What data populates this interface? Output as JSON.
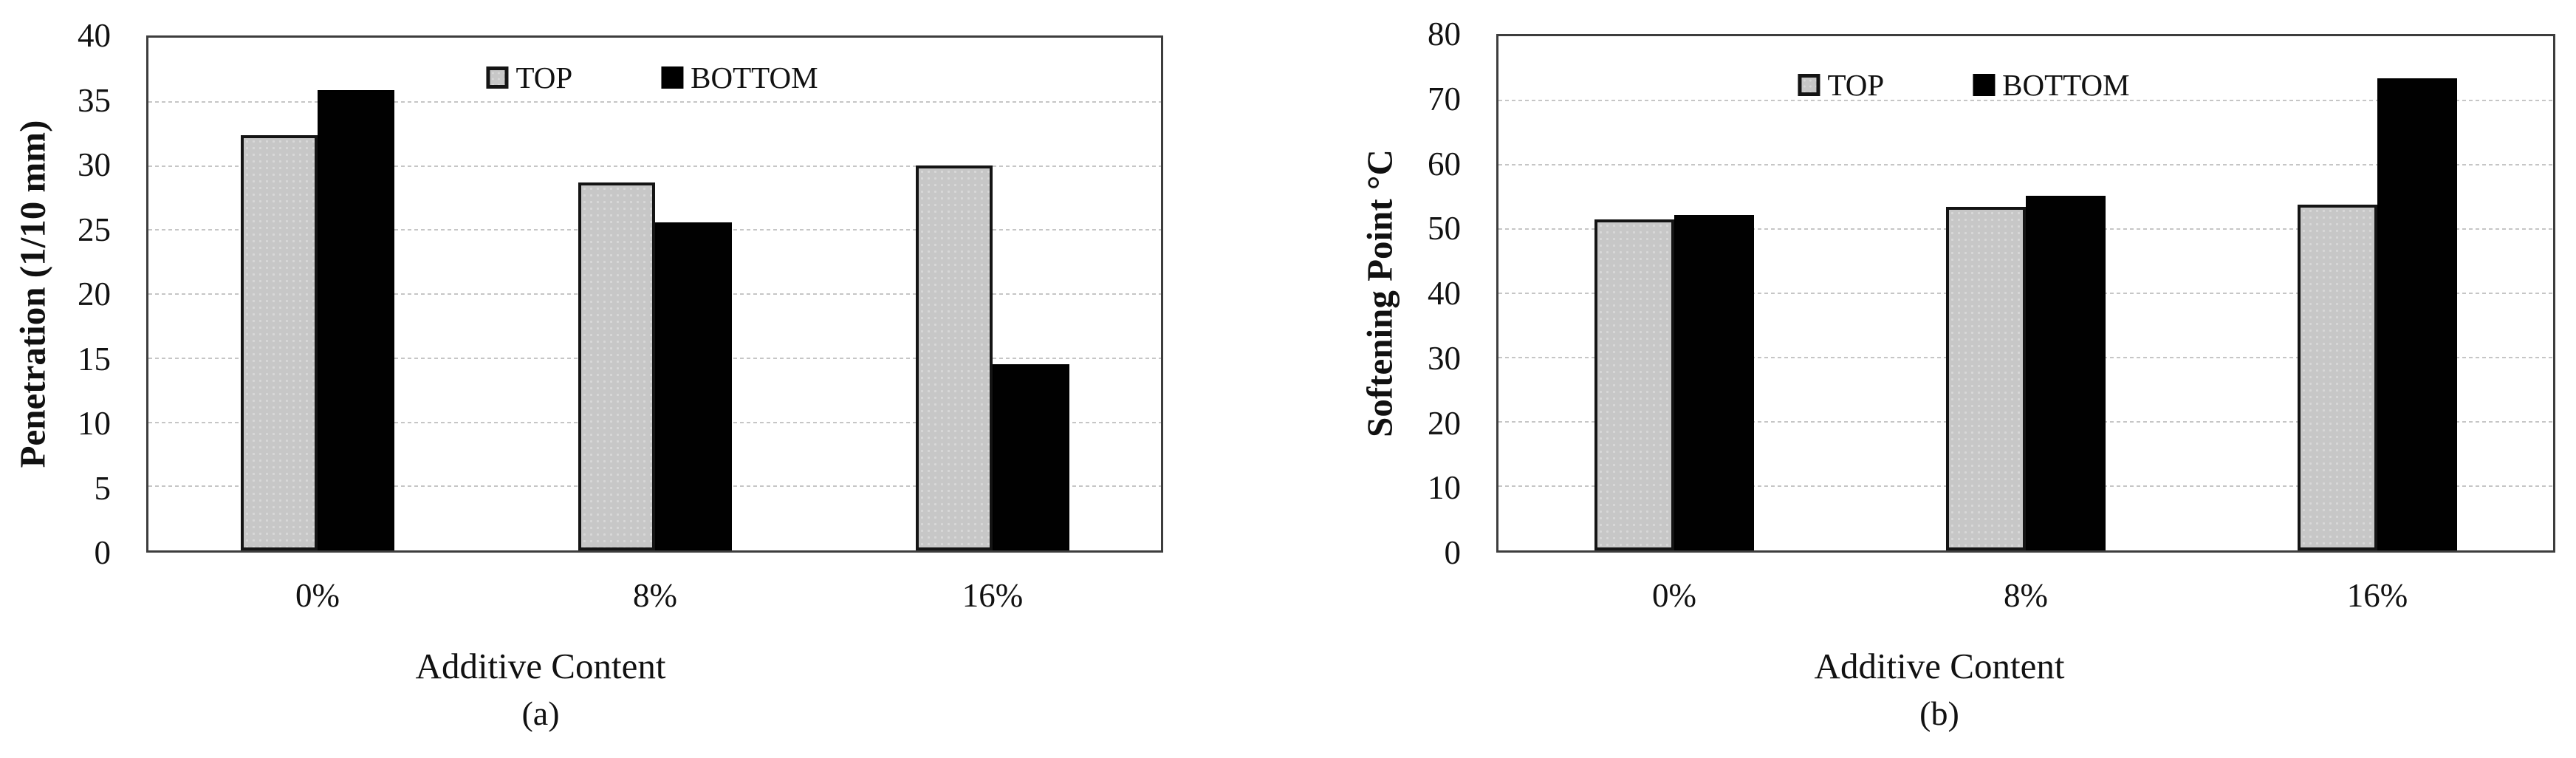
{
  "figure_title": "",
  "legend": {
    "top_label": "TOP",
    "bottom_label": "BOTTOM"
  },
  "colors": {
    "top_fill": "#c7c7c7",
    "top_border": "#141414",
    "bottom_fill": "#000000",
    "grid": "#c6c6c6",
    "plot_border": "#3d3d3d",
    "text": "#111111",
    "background": "#ffffff"
  },
  "chart_data": [
    {
      "type": "bar",
      "caption": "(a)",
      "title": "",
      "xlabel": "Additive Content",
      "ylabel": "Penetration (1/10 mm)",
      "categories": [
        "0%",
        "8%",
        "16%"
      ],
      "series": [
        {
          "name": "TOP",
          "values": [
            32.4,
            28.7,
            30.0
          ]
        },
        {
          "name": "BOTTOM",
          "values": [
            35.9,
            25.6,
            14.5
          ]
        }
      ],
      "ylim": [
        0,
        40
      ],
      "ytick_step": 5,
      "grid": true,
      "legend_position": "top-center"
    },
    {
      "type": "bar",
      "caption": "(b)",
      "title": "",
      "xlabel": "Additive Content",
      "ylabel": "Softening Point °C",
      "categories": [
        "0%",
        "8%",
        "16%"
      ],
      "series": [
        {
          "name": "TOP",
          "values": [
            51.5,
            53.5,
            53.8
          ]
        },
        {
          "name": "BOTTOM",
          "values": [
            52.2,
            55.2,
            73.5
          ]
        }
      ],
      "ylim": [
        0,
        80
      ],
      "ytick_step": 10,
      "grid": true,
      "legend_position": "top-center"
    }
  ]
}
